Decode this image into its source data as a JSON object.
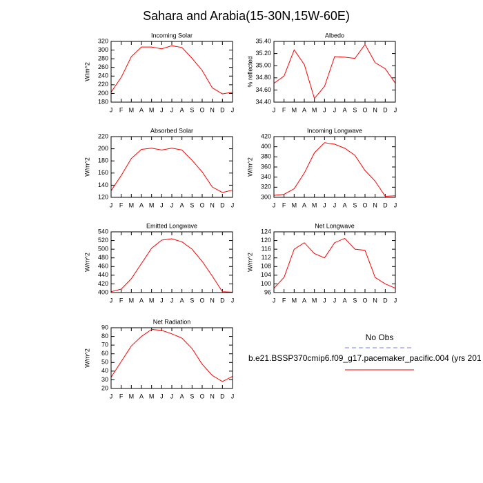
{
  "title": "Sahara and Arabia(15-30N,15W-60E)",
  "chart_data": [
    {
      "type": "line",
      "title": "Incoming Solar",
      "y_label": "W/m^2",
      "color": "#ff0000",
      "categories": [
        "J",
        "F",
        "M",
        "A",
        "M",
        "J",
        "J",
        "A",
        "S",
        "O",
        "N",
        "D",
        "J"
      ],
      "values": [
        203,
        237,
        285,
        307,
        307,
        303,
        310,
        306,
        281,
        253,
        213,
        199,
        203
      ],
      "ylim": [
        180,
        320
      ],
      "yticks": [
        180,
        200,
        220,
        240,
        260,
        280,
        300,
        320
      ]
    },
    {
      "type": "line",
      "title": "Albedo",
      "y_label": "% reflected",
      "color": "#ff0000",
      "categories": [
        "J",
        "F",
        "M",
        "A",
        "M",
        "J",
        "J",
        "A",
        "S",
        "O",
        "N",
        "D",
        "J"
      ],
      "values": [
        34.71,
        34.83,
        35.26,
        35.02,
        34.46,
        34.66,
        35.15,
        35.14,
        35.12,
        35.35,
        35.05,
        34.95,
        34.71
      ],
      "ylim": [
        34.4,
        35.4
      ],
      "yticks": [
        {
          "value": 34.4,
          "label": "34.40"
        },
        {
          "value": 34.6,
          "label": "34.60"
        },
        {
          "value": 34.8,
          "label": "34.80"
        },
        {
          "value": 35.0,
          "label": "35.00"
        },
        {
          "value": 35.2,
          "label": "35.20"
        },
        {
          "value": 35.4,
          "label": "35.40"
        }
      ]
    },
    {
      "type": "line",
      "title": "Absorbed Solar",
      "y_label": "W/m^2",
      "color": "#ff0000",
      "categories": [
        "J",
        "F",
        "M",
        "A",
        "M",
        "J",
        "J",
        "A",
        "S",
        "O",
        "N",
        "D",
        "J"
      ],
      "values": [
        131,
        156,
        184,
        199,
        201,
        198,
        201,
        198,
        181,
        162,
        137,
        128,
        132
      ],
      "ylim": [
        120,
        220
      ],
      "yticks": [
        120,
        140,
        160,
        180,
        200,
        220
      ]
    },
    {
      "type": "line",
      "title": "Incoming Longwave",
      "y_label": "W/m^2",
      "color": "#ff0000",
      "categories": [
        "J",
        "F",
        "M",
        "A",
        "M",
        "J",
        "J",
        "A",
        "S",
        "O",
        "N",
        "D",
        "J"
      ],
      "values": [
        304,
        306,
        317,
        348,
        388,
        408,
        405,
        397,
        383,
        353,
        332,
        302,
        303
      ],
      "ylim": [
        300,
        420
      ],
      "yticks": [
        300,
        320,
        340,
        360,
        380,
        400,
        420
      ]
    },
    {
      "type": "line",
      "title": "Emitted Longwave",
      "y_label": "W/m^2",
      "color": "#ff0000",
      "categories": [
        "J",
        "F",
        "M",
        "A",
        "M",
        "J",
        "J",
        "A",
        "S",
        "O",
        "N",
        "D",
        "J"
      ],
      "values": [
        402,
        408,
        432,
        467,
        502,
        521,
        524,
        517,
        500,
        472,
        438,
        402,
        401
      ],
      "ylim": [
        400,
        540
      ],
      "yticks": [
        400,
        420,
        440,
        460,
        480,
        500,
        520,
        540
      ]
    },
    {
      "type": "line",
      "title": "Net Longwave",
      "y_label": "W/m^2",
      "color": "#ff0000",
      "categories": [
        "J",
        "F",
        "M",
        "A",
        "M",
        "J",
        "J",
        "A",
        "S",
        "O",
        "N",
        "D",
        "J"
      ],
      "values": [
        98,
        103,
        116,
        119,
        114,
        112,
        119,
        121,
        116,
        115.5,
        103,
        100,
        98
      ],
      "ylim": [
        96,
        124
      ],
      "yticks": [
        96,
        100,
        104,
        108,
        112,
        116,
        120,
        124
      ]
    },
    {
      "type": "line",
      "title": "Net Radiation",
      "y_label": "W/m^2",
      "color": "#ff0000",
      "categories": [
        "J",
        "F",
        "M",
        "A",
        "M",
        "J",
        "J",
        "A",
        "S",
        "O",
        "N",
        "D",
        "J"
      ],
      "values": [
        33,
        51,
        69,
        80,
        88,
        87,
        83,
        78,
        66,
        48,
        35,
        28,
        34
      ],
      "ylim": [
        20,
        90
      ],
      "yticks": [
        20,
        30,
        40,
        50,
        60,
        70,
        80,
        90
      ]
    }
  ],
  "legend": [
    {
      "name": "No Obs",
      "color": "#7b7bff",
      "dashed": true
    },
    {
      "name": "b.e21.BSSP370cmip6.f09_g17.pacemaker_pacific.004 (yrs 201",
      "color": "#ff0000",
      "dashed": false
    }
  ]
}
